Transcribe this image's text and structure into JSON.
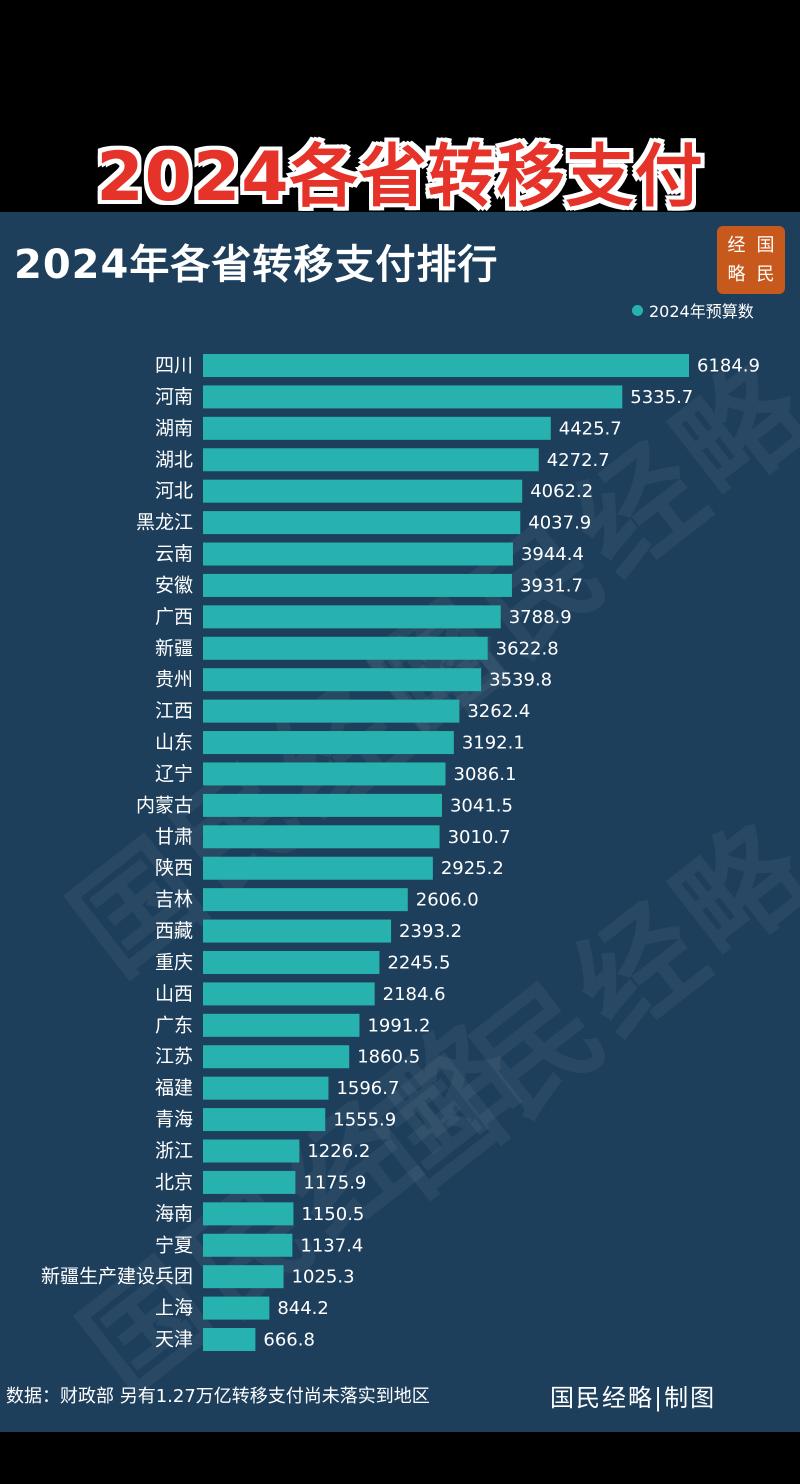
{
  "header": {
    "title": "2024各省转移支付"
  },
  "brand": {
    "seal_chars": [
      "经",
      "国",
      "略",
      "民"
    ]
  },
  "watermark": {
    "text": "国民经略"
  },
  "footer": {
    "source": "数据：财政部 另有1.27万亿转移支付尚未落实到地区",
    "credit": "国民经略|制图"
  },
  "colors": {
    "background": "#000000",
    "panel": "#1e3f5c",
    "bar": "#27b2b0",
    "header_title": "#e53329"
  },
  "chart_data": {
    "type": "bar",
    "orientation": "horizontal",
    "title": "2024年各省转移支付排行",
    "legend": {
      "label": "2024年预算数",
      "position": "top-right"
    },
    "grid": false,
    "categories": [
      "四川",
      "河南",
      "湖南",
      "湖北",
      "河北",
      "黑龙江",
      "云南",
      "安徽",
      "广西",
      "新疆",
      "贵州",
      "江西",
      "山东",
      "辽宁",
      "内蒙古",
      "甘肃",
      "陕西",
      "吉林",
      "西藏",
      "重庆",
      "山西",
      "广东",
      "江苏",
      "福建",
      "青海",
      "浙江",
      "北京",
      "海南",
      "宁夏",
      "新疆生产建设兵团",
      "上海",
      "天津"
    ],
    "value_labels": [
      "6184.9",
      "5335.7",
      "4425.7",
      "4272.7",
      "4062.2",
      "4037.9",
      "3944.4",
      "3931.7",
      "3788.9",
      "3622.8",
      "3539.8",
      "3262.4",
      "3192.1",
      "3086.1",
      "3041.5",
      "3010.7",
      "2925.2",
      "2606.0",
      "2393.2",
      "2245.5",
      "2184.6",
      "1991.2",
      "1860.5",
      "1596.7",
      "1555.9",
      "1226.2",
      "1175.9",
      "1150.5",
      "1137.4",
      "1025.3",
      "844.2",
      "666.8"
    ],
    "series": [
      {
        "name": "2024年预算数",
        "values": [
          6184.9,
          5335.7,
          4425.7,
          4272.7,
          4062.2,
          4037.9,
          3944.4,
          3931.7,
          3788.9,
          3622.8,
          3539.8,
          3262.4,
          3192.1,
          3086.1,
          3041.5,
          3010.7,
          2925.2,
          2606.0,
          2393.2,
          2245.5,
          2184.6,
          1991.2,
          1860.5,
          1596.7,
          1555.9,
          1226.2,
          1175.9,
          1150.5,
          1137.4,
          1025.3,
          844.2,
          666.8
        ]
      }
    ],
    "xlim": [
      0,
      6184.9
    ]
  }
}
